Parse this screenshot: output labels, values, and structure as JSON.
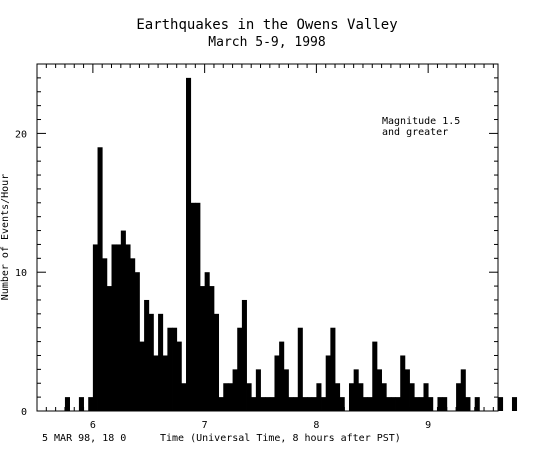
{
  "chart_data": {
    "type": "bar",
    "title": "Earthquakes in the Owens Valley",
    "subtitle": "March 5-9, 1998",
    "xlabel": "Time (Universal Time, 8 hours after PST)",
    "ylabel": "Number of Events/Hour",
    "origin_label": "5 MAR 98, 18 0",
    "annotation_line1": "Magnitude 1.5",
    "annotation_line2": "and greater",
    "ylim": [
      0,
      25
    ],
    "yticks": [
      {
        "value": 0,
        "label": "0"
      },
      {
        "value": 10,
        "label": "10"
      },
      {
        "value": 20,
        "label": "20"
      }
    ],
    "xlim": [
      -6,
      93
    ],
    "xticks": [
      {
        "value": 6,
        "label": "6"
      },
      {
        "value": 30,
        "label": "7"
      },
      {
        "value": 54,
        "label": "8"
      },
      {
        "value": 78,
        "label": "9"
      }
    ],
    "x_unit": "hours since 5 MAR 98 18:00 UT",
    "bar_start_hour": 0,
    "values": [
      1,
      0,
      0,
      1,
      0,
      1,
      12,
      19,
      11,
      9,
      12,
      12,
      13,
      12,
      11,
      10,
      5,
      8,
      7,
      4,
      7,
      4,
      6,
      6,
      5,
      2,
      24,
      15,
      15,
      9,
      10,
      9,
      7,
      1,
      2,
      2,
      3,
      6,
      8,
      2,
      1,
      3,
      1,
      1,
      1,
      4,
      5,
      3,
      1,
      1,
      6,
      1,
      1,
      1,
      2,
      1,
      4,
      6,
      2,
      1,
      0,
      2,
      3,
      2,
      1,
      1,
      5,
      3,
      2,
      1,
      1,
      1,
      4,
      3,
      2,
      1,
      1,
      2,
      1,
      0,
      1,
      1,
      0,
      0,
      2,
      3,
      1,
      0,
      1,
      0,
      0,
      0,
      0,
      1,
      0,
      0,
      1,
      0,
      0
    ],
    "bar_color": "#000000"
  }
}
